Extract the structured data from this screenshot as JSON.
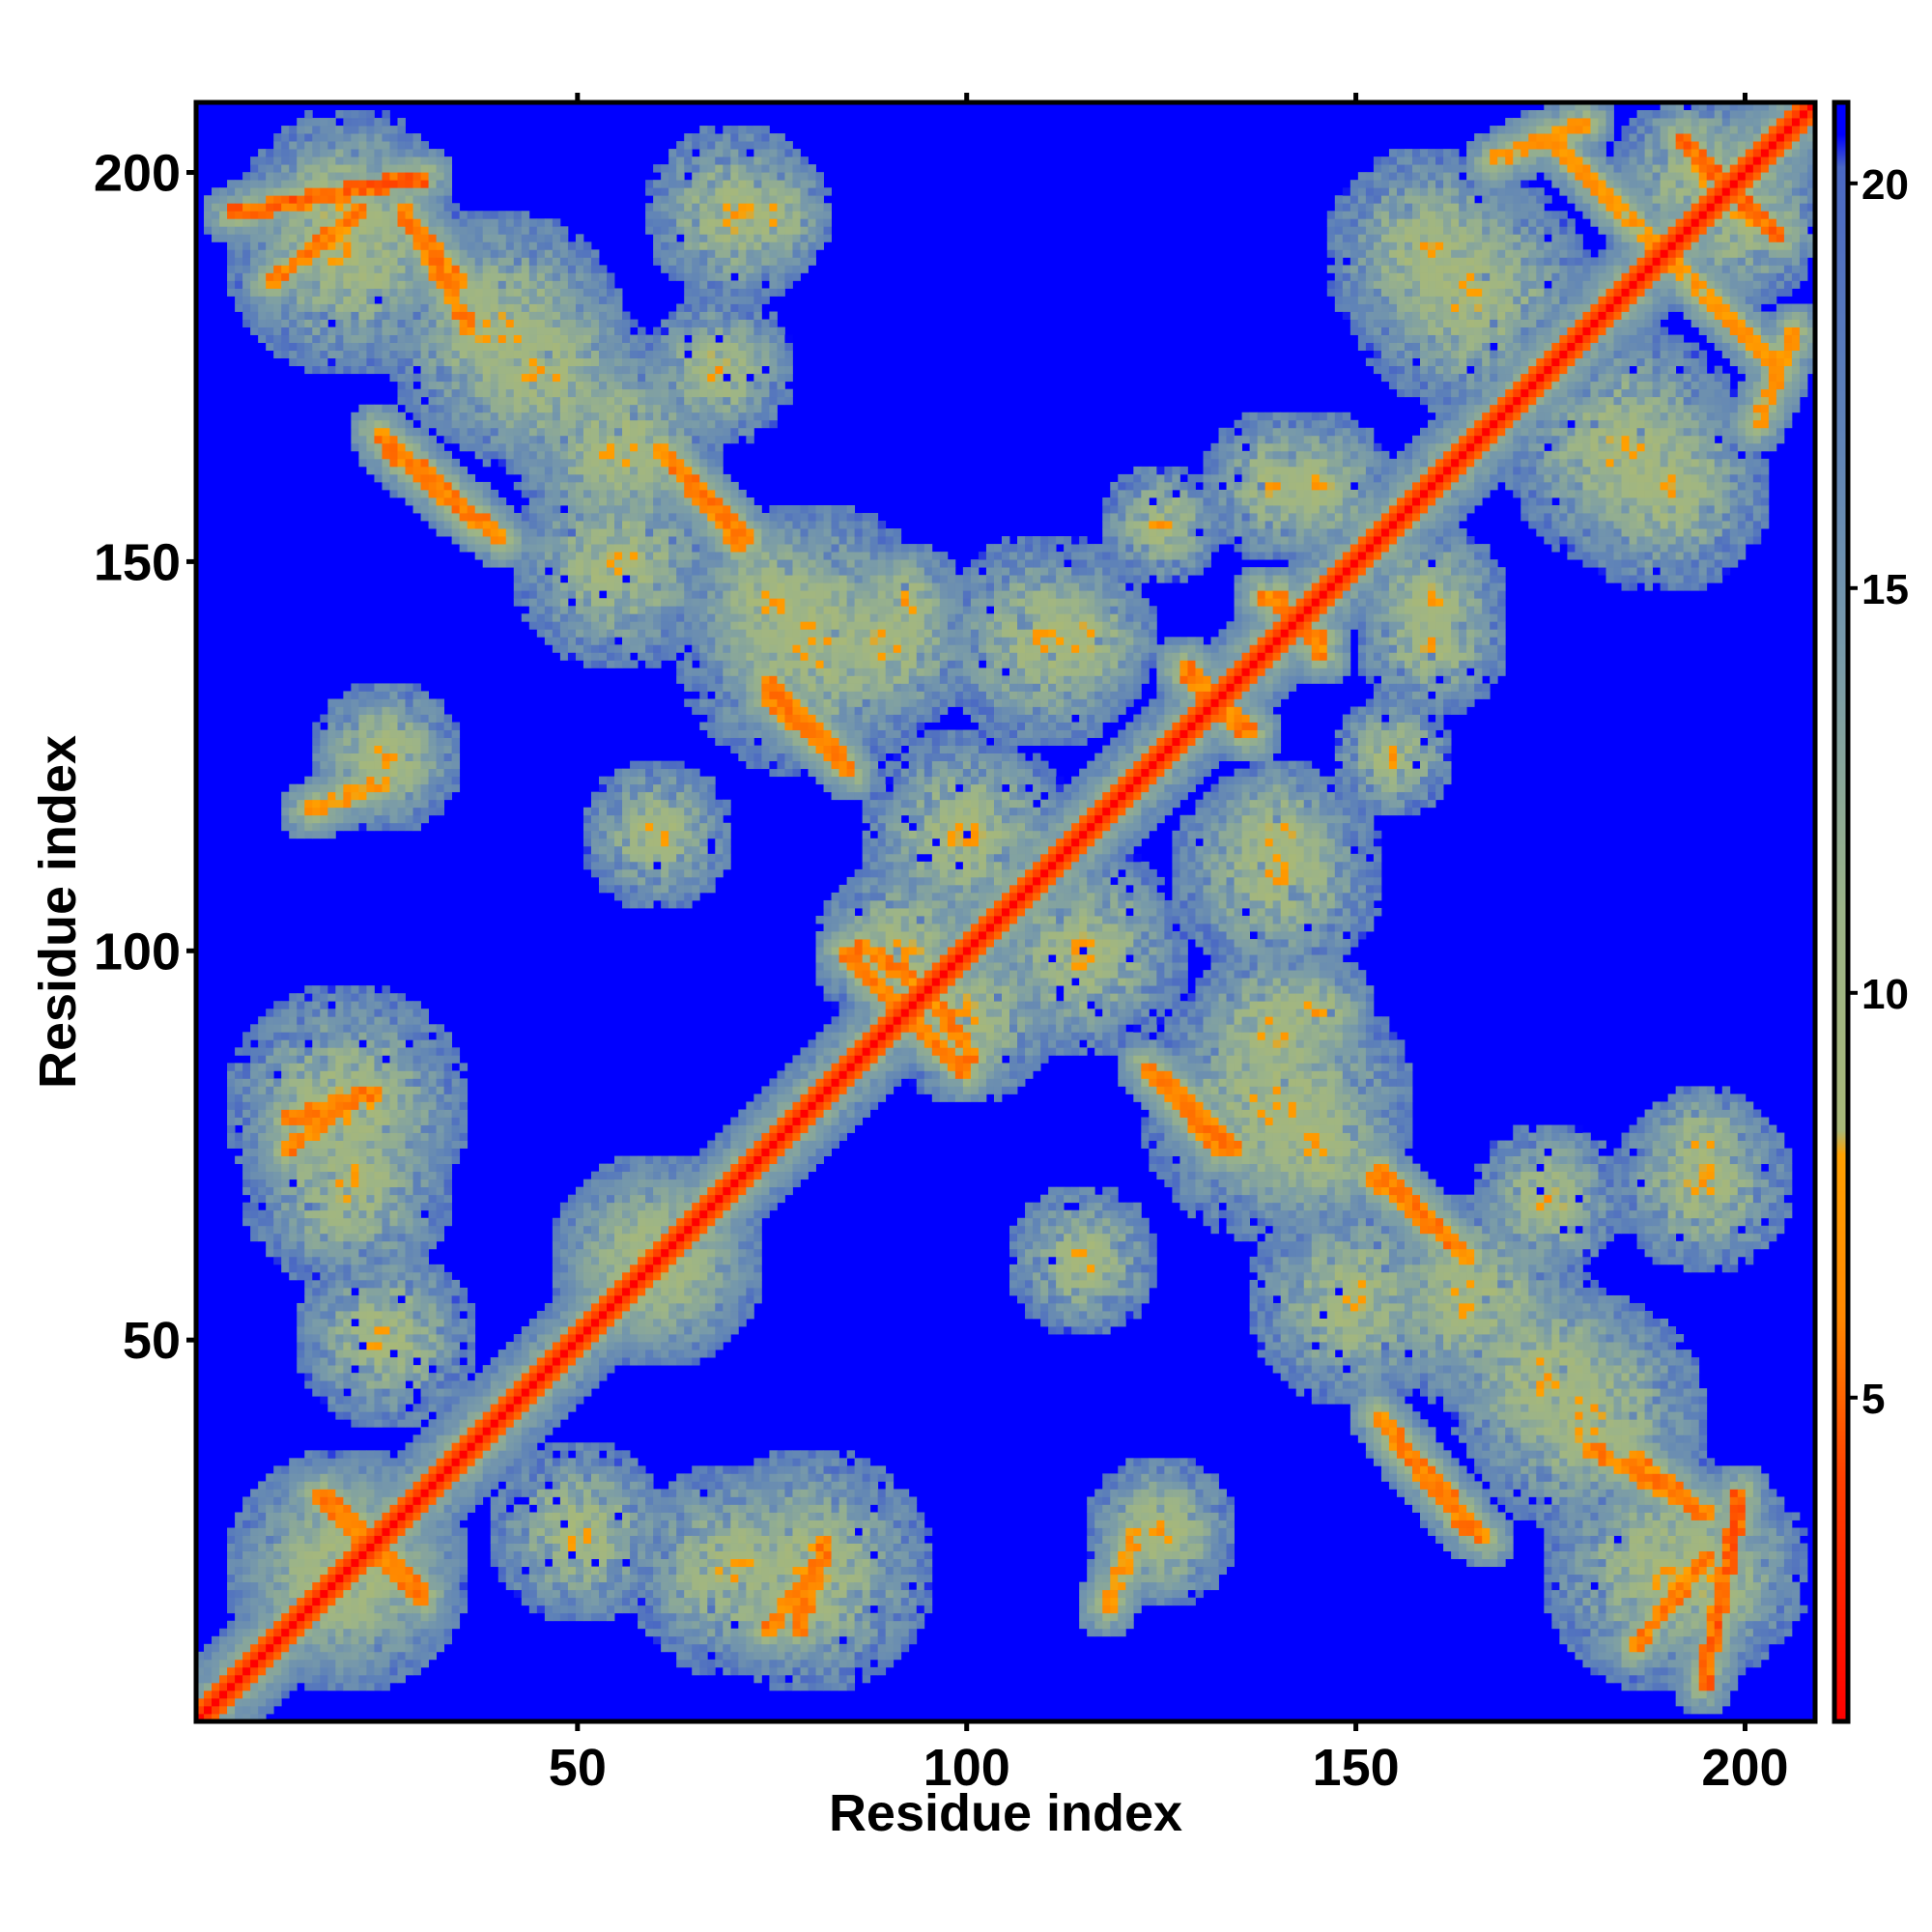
{
  "chart_data": {
    "type": "heatmap",
    "title": "",
    "xlabel": "Residue index",
    "ylabel": "Residue index",
    "n_residues": 209,
    "xlim": [
      1,
      209
    ],
    "ylim": [
      1,
      209
    ],
    "x_ticks": [
      50,
      100,
      150,
      200
    ],
    "y_ticks": [
      50,
      100,
      150,
      200
    ],
    "colorbar": {
      "ticks": [
        5,
        10,
        15,
        20
      ],
      "range": [
        1,
        21
      ],
      "stops": [
        {
          "value": 1,
          "color": "#ff0000"
        },
        {
          "value": 4,
          "color": "#ff4000"
        },
        {
          "value": 6,
          "color": "#ff8800"
        },
        {
          "value": 8,
          "color": "#ffa000"
        },
        {
          "value": 8.3,
          "color": "#a8b878"
        },
        {
          "value": 11,
          "color": "#9cb488"
        },
        {
          "value": 14,
          "color": "#7a9ca8"
        },
        {
          "value": 17,
          "color": "#5e82b8"
        },
        {
          "value": 20.2,
          "color": "#4a68c4"
        },
        {
          "value": 20.6,
          "color": "#0000ff"
        }
      ]
    },
    "background_value": 21,
    "diagonal_value": 1,
    "contact_bands": [
      {
        "kind": "parallel",
        "x": [
          5,
          30
        ],
        "y": [
          195,
          200
        ],
        "min": 4
      },
      {
        "kind": "parallel",
        "x": [
          27,
          36
        ],
        "y": [
          196,
          180
        ],
        "min": 5
      },
      {
        "kind": "parallel",
        "x": [
          24,
          40
        ],
        "y": [
          167,
          153
        ],
        "min": 5
      },
      {
        "kind": "parallel",
        "x": [
          60,
          72
        ],
        "y": [
          165,
          153
        ],
        "min": 5
      },
      {
        "kind": "parallel",
        "x": [
          74,
          85
        ],
        "y": [
          133,
          123
        ],
        "min": 5
      },
      {
        "kind": "parallel",
        "x": [
          15,
          25
        ],
        "y": [
          118,
          122
        ],
        "min": 6
      },
      {
        "kind": "parallel",
        "x": [
          12,
          24
        ],
        "y": [
          78,
          82
        ],
        "min": 5
      },
      {
        "kind": "parallel",
        "x": [
          16,
          30
        ],
        "y": [
          30,
          17
        ],
        "min": 5
      },
      {
        "kind": "parallel",
        "x": [
          74,
          82
        ],
        "y": [
          12,
          22
        ],
        "min": 5
      },
      {
        "kind": "parallel",
        "x": [
          125,
          135
        ],
        "y": [
          84,
          74
        ],
        "min": 5
      },
      {
        "kind": "parallel",
        "x": [
          152,
          163
        ],
        "y": [
          71,
          62
        ],
        "min": 5
      },
      {
        "kind": "parallel",
        "x": [
          155,
          165
        ],
        "y": [
          37,
          25
        ],
        "min": 5
      },
      {
        "kind": "parallel",
        "x": [
          186,
          193
        ],
        "y": [
          35,
          29
        ],
        "min": 5
      },
      {
        "kind": "parallel",
        "x": [
          186,
          196
        ],
        "y": [
          10,
          22
        ],
        "min": 5
      },
      {
        "kind": "parallel",
        "x": [
          93,
          100
        ],
        "y": [
          91,
          84
        ],
        "min": 5
      },
      {
        "kind": "parallel",
        "x": [
          86,
          96
        ],
        "y": [
          101,
          94
        ],
        "min": 5
      },
      {
        "kind": "parallel",
        "x": [
          128,
          136
        ],
        "y": [
          137,
          128
        ],
        "min": 5
      },
      {
        "kind": "parallel",
        "x": [
          140,
          146
        ],
        "y": [
          146,
          138
        ],
        "min": 5
      },
      {
        "kind": "parallel",
        "x": [
          192,
          205
        ],
        "y": [
          205,
          192
        ],
        "min": 4
      },
      {
        "kind": "parallel",
        "x": [
          168,
          180
        ],
        "y": [
          202,
          207
        ],
        "min": 6
      },
      {
        "kind": "parallel",
        "x": [
          190,
          205
        ],
        "y": [
          190,
          175
        ],
        "min": 6
      }
    ],
    "contact_blobs": [
      {
        "x": 20,
        "y": 190,
        "r": 16
      },
      {
        "x": 45,
        "y": 175,
        "r": 14
      },
      {
        "x": 75,
        "y": 195,
        "r": 8
      },
      {
        "x": 68,
        "y": 175,
        "r": 10
      },
      {
        "x": 55,
        "y": 150,
        "r": 14
      },
      {
        "x": 75,
        "y": 145,
        "r": 12
      },
      {
        "x": 90,
        "y": 140,
        "r": 12
      },
      {
        "x": 115,
        "y": 140,
        "r": 10
      },
      {
        "x": 100,
        "y": 115,
        "r": 14
      },
      {
        "x": 60,
        "y": 115,
        "r": 10
      },
      {
        "x": 25,
        "y": 125,
        "r": 8
      },
      {
        "x": 100,
        "y": 92,
        "r": 12
      },
      {
        "x": 20,
        "y": 80,
        "r": 16
      },
      {
        "x": 60,
        "y": 60,
        "r": 14
      },
      {
        "x": 70,
        "y": 20,
        "r": 14
      },
      {
        "x": 20,
        "y": 20,
        "r": 16
      },
      {
        "x": 50,
        "y": 25,
        "r": 12
      },
      {
        "x": 125,
        "y": 25,
        "r": 10
      },
      {
        "x": 140,
        "y": 80,
        "r": 18
      },
      {
        "x": 140,
        "y": 110,
        "r": 14
      },
      {
        "x": 145,
        "y": 92,
        "r": 8
      },
      {
        "x": 165,
        "y": 55,
        "r": 14
      },
      {
        "x": 180,
        "y": 40,
        "r": 16
      },
      {
        "x": 195,
        "y": 20,
        "r": 14
      },
      {
        "x": 195,
        "y": 70,
        "r": 12
      },
      {
        "x": 160,
        "y": 190,
        "r": 14
      },
      {
        "x": 185,
        "y": 165,
        "r": 16
      },
      {
        "x": 200,
        "y": 195,
        "r": 12
      },
      {
        "x": 145,
        "y": 160,
        "r": 10
      },
      {
        "x": 160,
        "y": 140,
        "r": 10
      },
      {
        "x": 125,
        "y": 155,
        "r": 8
      }
    ]
  }
}
